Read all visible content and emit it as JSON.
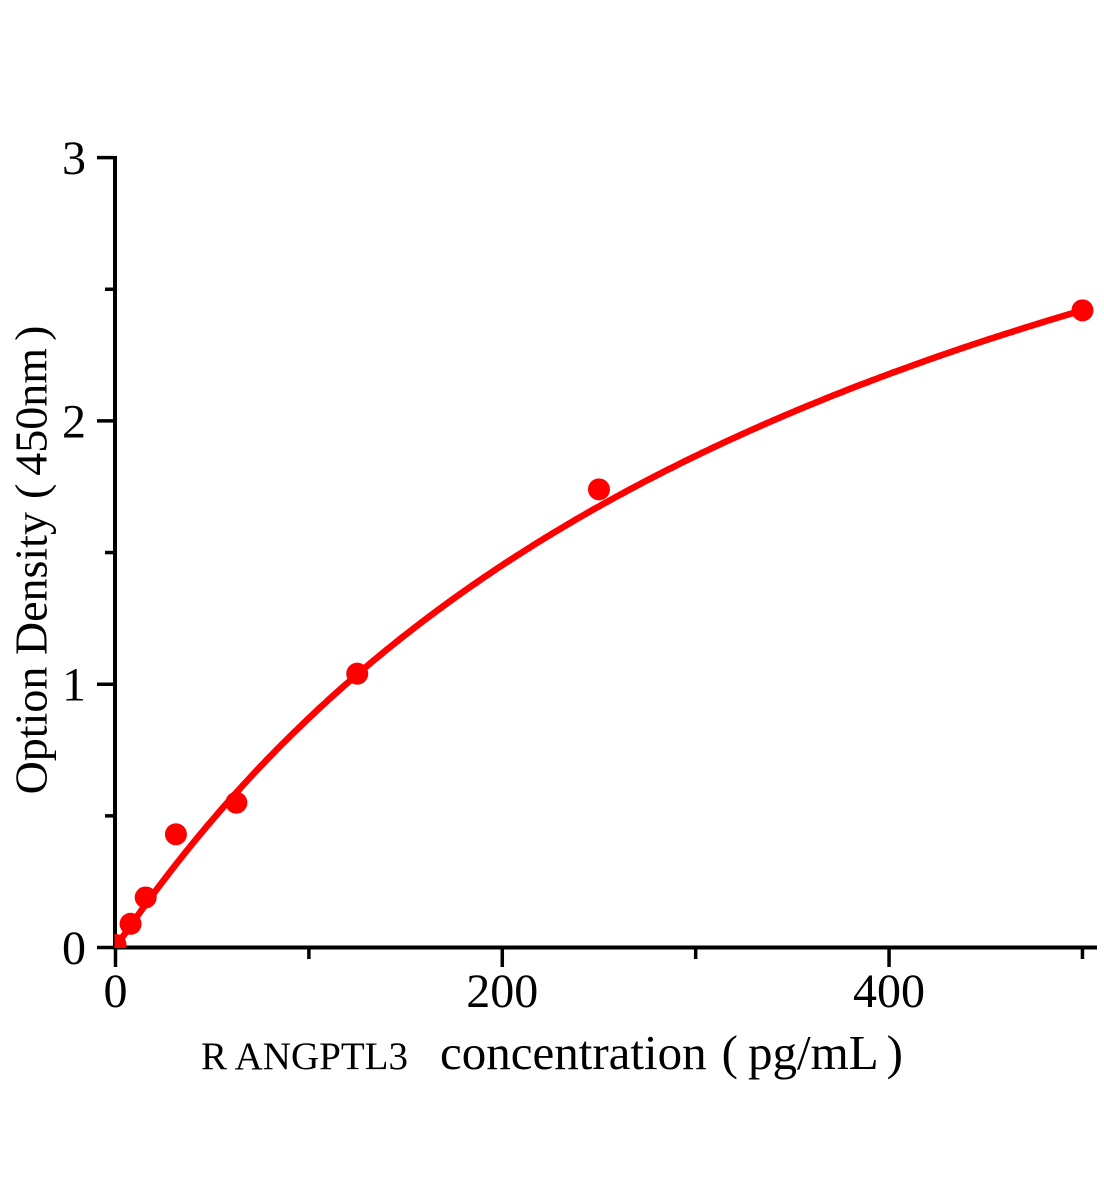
{
  "figure": {
    "background_color": "#ffffff",
    "axis_color": "#000000",
    "curve_color": "#ff0000"
  },
  "chart_data": {
    "type": "scatter",
    "title": "",
    "xlabel": "R ANGPTL3  concentration（pg/mL）",
    "xlabel_parts": {
      "prefix": "R ANGPTL3",
      "main": "concentration",
      "unit_open": "(",
      "unit": "pg/mL",
      "unit_close": ")"
    },
    "ylabel": "Option Density（450nm）",
    "ylabel_parts": {
      "main": "Option Density",
      "unit_open": "(",
      "unit": "450nm",
      "unit_close": ")"
    },
    "xlim": [
      0,
      510
    ],
    "ylim": [
      0,
      3
    ],
    "grid": false,
    "legend": null,
    "xticks": {
      "major": [
        0,
        200,
        400
      ],
      "minor": [
        100,
        300,
        500
      ],
      "major_labels": [
        "0",
        "200",
        "400"
      ]
    },
    "yticks": {
      "major": [
        0,
        1,
        2,
        3
      ],
      "minor": [
        0.5,
        1.5,
        2.5
      ],
      "major_labels": [
        "0",
        "1",
        "2",
        "3"
      ]
    },
    "points": [
      {
        "x": 0,
        "y": 0.01
      },
      {
        "x": 7.8,
        "y": 0.09
      },
      {
        "x": 15.6,
        "y": 0.19
      },
      {
        "x": 31.25,
        "y": 0.43
      },
      {
        "x": 62.5,
        "y": 0.55
      },
      {
        "x": 125,
        "y": 1.04
      },
      {
        "x": 250,
        "y": 1.74
      },
      {
        "x": 500,
        "y": 2.42
      }
    ],
    "fit_curve": {
      "model": "y = a*x/(b+x)",
      "a": 4.356,
      "b": 400,
      "x_range": [
        0,
        500
      ]
    }
  }
}
